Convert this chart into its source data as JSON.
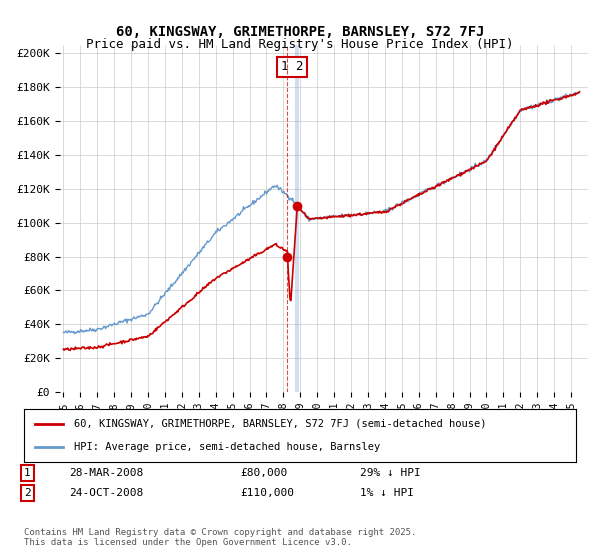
{
  "title": "60, KINGSWAY, GRIMETHORPE, BARNSLEY, S72 7FJ",
  "subtitle": "Price paid vs. HM Land Registry's House Price Index (HPI)",
  "ylabel_ticks": [
    "£0",
    "£20K",
    "£40K",
    "£60K",
    "£80K",
    "£100K",
    "£120K",
    "£140K",
    "£160K",
    "£180K",
    "£200K"
  ],
  "ytick_values": [
    0,
    20000,
    40000,
    60000,
    80000,
    100000,
    120000,
    140000,
    160000,
    180000,
    200000
  ],
  "ylim": [
    0,
    205000
  ],
  "transaction1": {
    "x": 2008.24,
    "price": 80000
  },
  "transaction2": {
    "x": 2008.82,
    "price": 110000
  },
  "legend_property_label": "60, KINGSWAY, GRIMETHORPE, BARNSLEY, S72 7FJ (semi-detached house)",
  "legend_hpi_label": "HPI: Average price, semi-detached house, Barnsley",
  "property_color": "#cc0000",
  "hpi_color": "#6699cc",
  "footer_note": "Contains HM Land Registry data © Crown copyright and database right 2025.\nThis data is licensed under the Open Government Licence v3.0.",
  "grid_color": "#cccccc",
  "background_color": "#ffffff"
}
